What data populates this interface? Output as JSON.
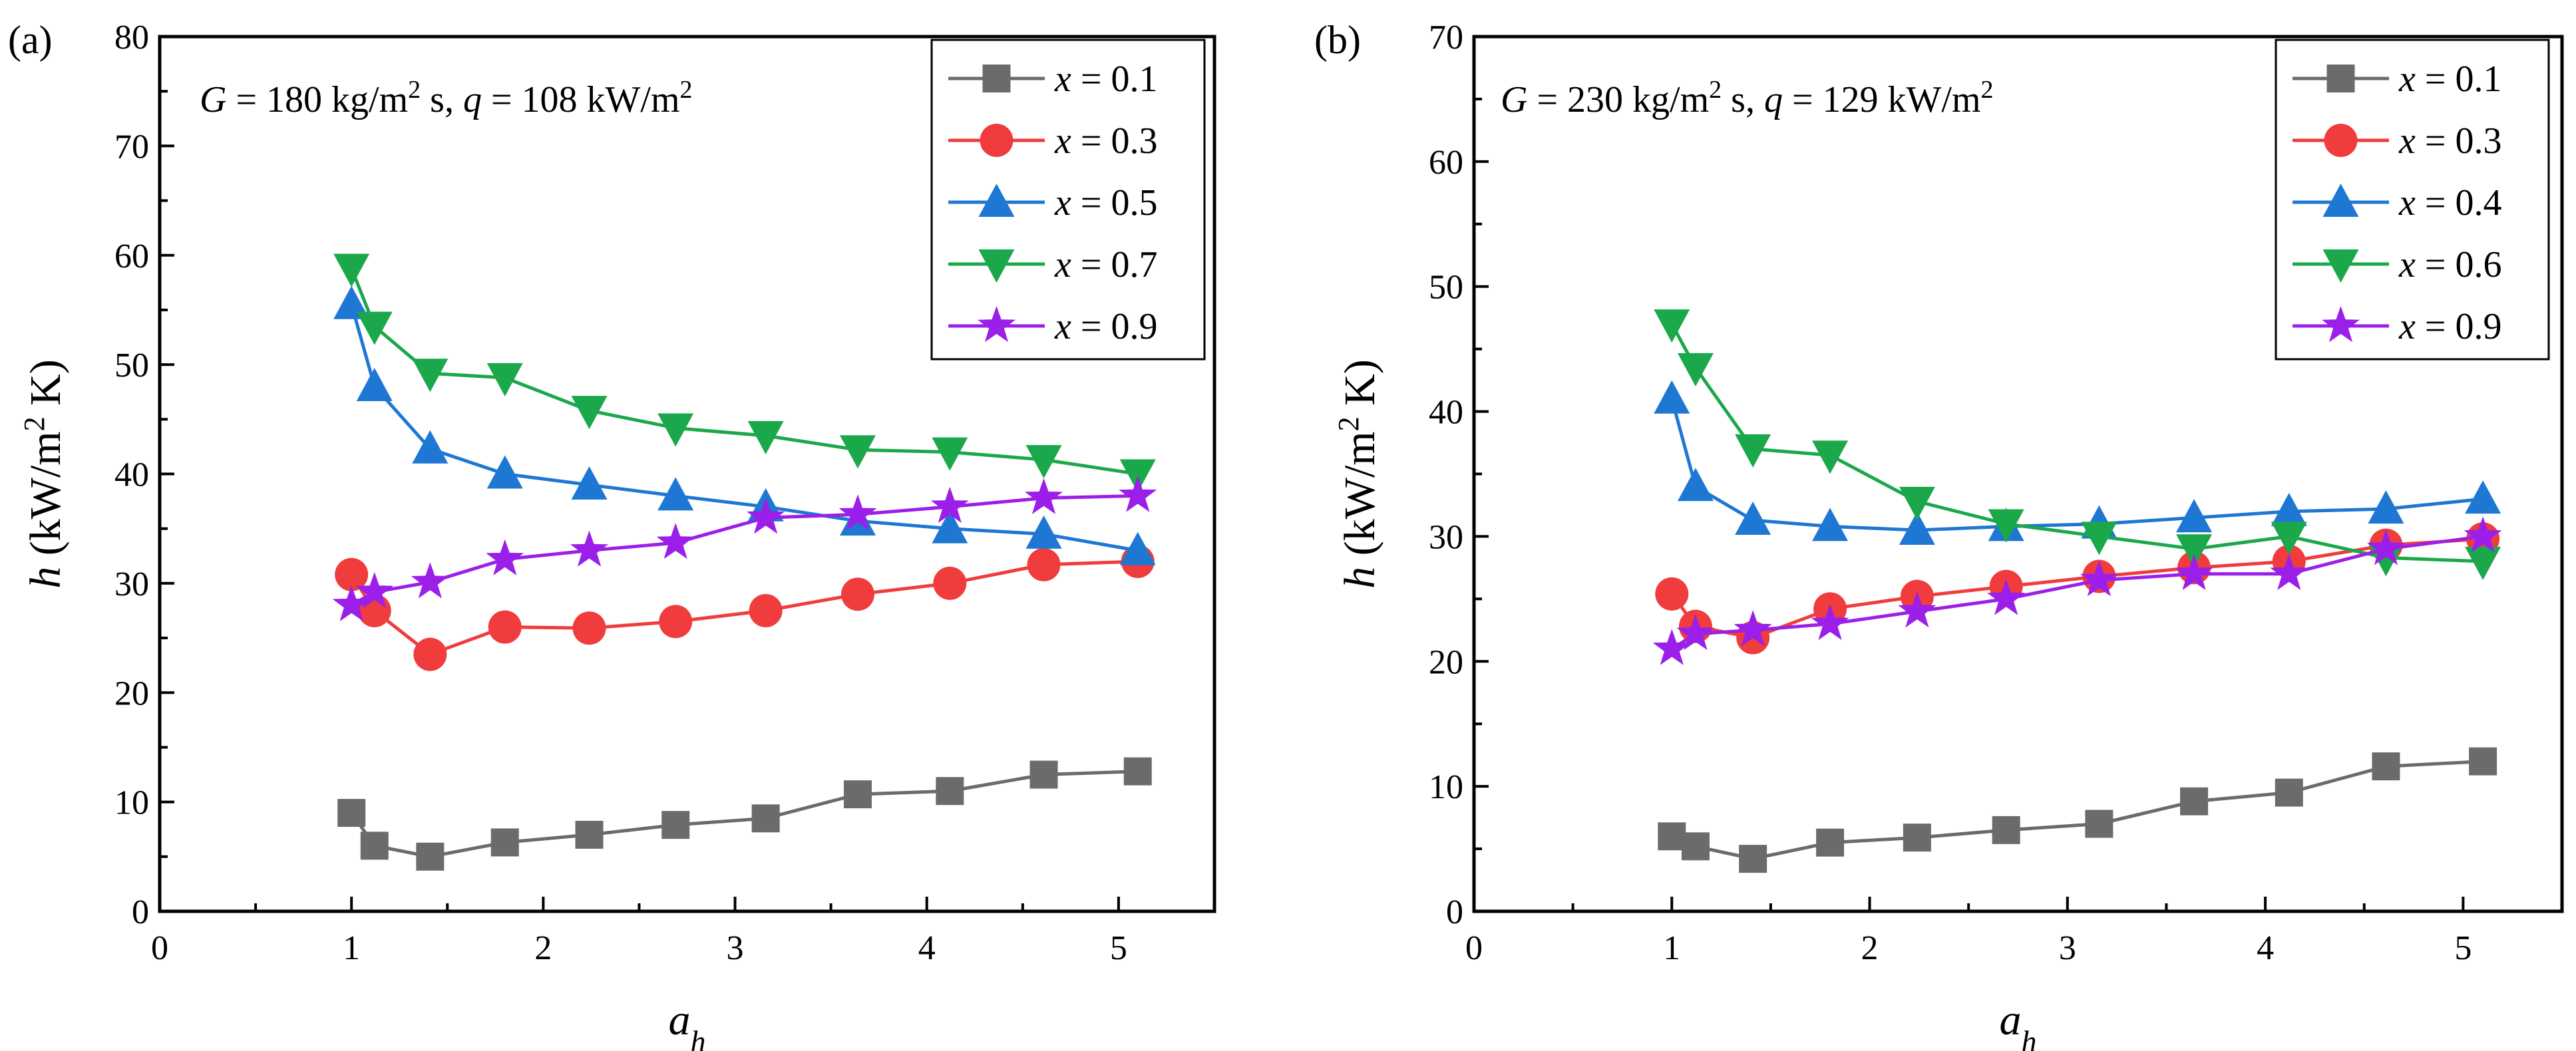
{
  "chart_data": [
    {
      "type": "line",
      "panel_label": "(a)",
      "annotation": {
        "prefix": "G",
        "middle": " = 180 kg/m",
        "sup1": "2",
        "mid2": " s, ",
        "q_symbol": "q",
        "mid3": " = 108 kW/m",
        "sup2": "2"
      },
      "xlabel": {
        "base": "a",
        "sub": "h"
      },
      "ylabel": {
        "sym": "h",
        "unit": " (kW/m",
        "sup": "2",
        "end": " K)"
      },
      "xlim": [
        0,
        5.5
      ],
      "ylim": [
        0,
        80
      ],
      "xticks": [
        0,
        1,
        2,
        3,
        4,
        5
      ],
      "yticks": [
        0,
        10,
        20,
        30,
        40,
        50,
        60,
        70,
        80
      ],
      "x": [
        1.0,
        1.12,
        1.41,
        1.8,
        2.24,
        2.69,
        3.16,
        3.64,
        4.12,
        4.61,
        5.1
      ],
      "legend_position": "top-right",
      "series": [
        {
          "name_sym": "x",
          "name_val": " = 0.1",
          "color": "#6b6b6b",
          "marker": "square",
          "values": [
            9,
            6,
            5,
            6.3,
            7,
            7.9,
            8.5,
            10.7,
            11,
            12.5,
            12.8
          ]
        },
        {
          "name_sym": "x",
          "name_val": " = 0.3",
          "color": "#f03c3c",
          "marker": "circle",
          "values": [
            30.8,
            27.5,
            23.5,
            26,
            25.9,
            26.5,
            27.5,
            29,
            30,
            31.7,
            32
          ]
        },
        {
          "name_sym": "x",
          "name_val": " = 0.5",
          "color": "#1f77d4",
          "marker": "triangle-up",
          "values": [
            55.5,
            48,
            42.3,
            40,
            39,
            38,
            37,
            35.7,
            35,
            34.5,
            33
          ]
        },
        {
          "name_sym": "x",
          "name_val": " = 0.7",
          "color": "#1aa84a",
          "marker": "triangle-down",
          "values": [
            58.8,
            53.5,
            49.2,
            48.8,
            45.8,
            44.2,
            43.5,
            42.2,
            42,
            41.3,
            40
          ]
        },
        {
          "name_sym": "x",
          "name_val": " = 0.9",
          "color": "#9b1fe8",
          "marker": "star",
          "values": [
            28,
            29.2,
            30.1,
            32.2,
            33,
            33.7,
            36,
            36.3,
            37,
            37.8,
            38
          ]
        }
      ]
    },
    {
      "type": "line",
      "panel_label": "(b)",
      "annotation": {
        "prefix": "G",
        "middle": " = 230 kg/m",
        "sup1": "2",
        "mid2": " s, ",
        "q_symbol": "q",
        "mid3": " = 129 kW/m",
        "sup2": "2"
      },
      "xlabel": {
        "base": "a",
        "sub": "h"
      },
      "ylabel": {
        "sym": "h",
        "unit": " (kW/m",
        "sup": "2",
        "end": " K)"
      },
      "xlim": [
        0,
        5.5
      ],
      "ylim": [
        0,
        70
      ],
      "xticks": [
        0,
        1,
        2,
        3,
        4,
        5
      ],
      "yticks": [
        0,
        10,
        20,
        30,
        40,
        50,
        60,
        70
      ],
      "x": [
        1.0,
        1.12,
        1.41,
        1.8,
        2.24,
        2.69,
        3.16,
        3.64,
        4.12,
        4.61,
        5.1
      ],
      "legend_position": "top-right",
      "series": [
        {
          "name_sym": "x",
          "name_val": " = 0.1",
          "color": "#6b6b6b",
          "marker": "square",
          "values": [
            6,
            5.2,
            4.2,
            5.5,
            5.9,
            6.5,
            7,
            8.8,
            9.5,
            11.6,
            12
          ]
        },
        {
          "name_sym": "x",
          "name_val": " = 0.3",
          "color": "#f03c3c",
          "marker": "circle",
          "values": [
            25.4,
            22.8,
            21.9,
            24.2,
            25.2,
            26,
            26.8,
            27.5,
            28,
            29.3,
            29.8
          ]
        },
        {
          "name_sym": "x",
          "name_val": " = 0.4",
          "color": "#1f77d4",
          "marker": "triangle-up",
          "values": [
            41,
            34,
            31.3,
            30.8,
            30.5,
            30.8,
            31,
            31.5,
            32,
            32.2,
            33
          ]
        },
        {
          "name_sym": "x",
          "name_val": " = 0.6",
          "color": "#1aa84a",
          "marker": "triangle-down",
          "values": [
            47,
            43.5,
            37,
            36.5,
            32.8,
            31,
            30,
            29,
            30,
            28.3,
            28
          ]
        },
        {
          "name_sym": "x",
          "name_val": " = 0.9",
          "color": "#9b1fe8",
          "marker": "star",
          "values": [
            21,
            22.2,
            22.5,
            23,
            24,
            25,
            26.5,
            27,
            27,
            29,
            30
          ]
        }
      ]
    }
  ]
}
